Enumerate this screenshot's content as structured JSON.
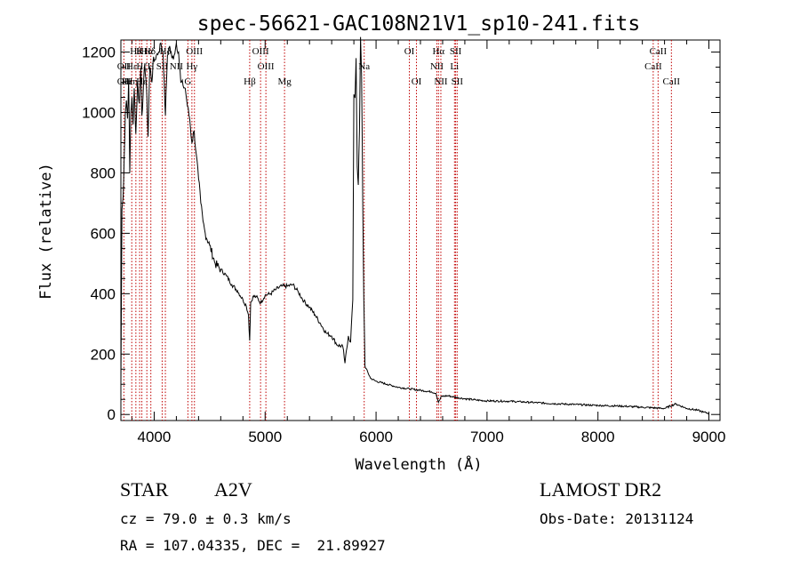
{
  "chart_data": {
    "type": "line",
    "title": "spec-56621-GAC108N21V1_sp10-241.fits",
    "xlabel": "Wavelength (Å)",
    "ylabel": "Flux (relative)",
    "xlim": [
      3700,
      9100
    ],
    "ylim": [
      -20,
      1240
    ],
    "xticks": [
      4000,
      5000,
      6000,
      7000,
      8000,
      9000
    ],
    "yticks": [
      0,
      200,
      400,
      600,
      800,
      1000,
      1200
    ],
    "grid": false,
    "series": [
      {
        "x": [
          3700,
          3710,
          3720,
          3730,
          3740,
          3750,
          3760,
          3770,
          3780,
          3790,
          3800,
          3810,
          3820,
          3835,
          3850,
          3865,
          3880,
          3889,
          3900,
          3915,
          3930,
          3945,
          3960,
          3970,
          3980,
          3990,
          4000,
          4020,
          4040,
          4060,
          4080,
          4101,
          4120,
          4140,
          4160,
          4180,
          4200,
          4220,
          4240,
          4260,
          4280,
          4300,
          4320,
          4340,
          4360,
          4380,
          4400,
          4420,
          4440,
          4460,
          4500,
          4550,
          4600,
          4650,
          4700,
          4750,
          4800,
          4830,
          4850,
          4861,
          4870,
          4890,
          4920,
          4960,
          5000,
          5050,
          5100,
          5150,
          5200,
          5250,
          5300,
          5350,
          5400,
          5450,
          5500,
          5550,
          5600,
          5650,
          5700,
          5720,
          5750,
          5770,
          5790,
          5800,
          5810,
          5820,
          5830,
          5840,
          5850,
          5860,
          5870,
          5880,
          5890,
          5900,
          5950,
          6000,
          6100,
          6200,
          6300,
          6400,
          6500,
          6540,
          6563,
          6590,
          6650,
          6700,
          6800,
          6900,
          7000,
          7200,
          7400,
          7600,
          7800,
          8000,
          8200,
          8400,
          8600,
          8700,
          8800,
          8900,
          8950,
          9000
        ],
        "values": [
          100,
          680,
          720,
          850,
          1000,
          1040,
          980,
          1110,
          800,
          1000,
          1050,
          960,
          1080,
          930,
          1100,
          1030,
          1150,
          990,
          1060,
          1160,
          1090,
          920,
          1150,
          1130,
          1100,
          1170,
          1170,
          1190,
          1200,
          1230,
          1200,
          990,
          1190,
          1220,
          1180,
          1190,
          1230,
          1200,
          1100,
          1090,
          1080,
          1020,
          980,
          900,
          940,
          860,
          780,
          700,
          640,
          600,
          560,
          500,
          480,
          460,
          430,
          410,
          380,
          360,
          330,
          245,
          370,
          390,
          390,
          370,
          395,
          400,
          415,
          425,
          425,
          430,
          405,
          375,
          355,
          330,
          300,
          270,
          260,
          230,
          225,
          170,
          260,
          240,
          380,
          1060,
          1050,
          1180,
          820,
          760,
          940,
          1250,
          1120,
          700,
          380,
          160,
          120,
          110,
          100,
          90,
          85,
          80,
          75,
          70,
          40,
          60,
          62,
          58,
          52,
          48,
          45,
          44,
          40,
          36,
          33,
          30,
          28,
          24,
          20,
          35,
          20,
          14,
          8,
          4
        ]
      }
    ],
    "lines": {
      "labels": [
        {
          "x": 3835,
          "row": 1,
          "text": "Hθ"
        },
        {
          "x": 3869,
          "row": 1,
          "text": "K"
        },
        {
          "x": 3934,
          "row": 1,
          "text": "Hα"
        },
        {
          "x": 3960,
          "row": 1,
          "text": "Hδ"
        },
        {
          "x": 4101,
          "row": 1,
          "text": "Hδ"
        },
        {
          "x": 4363,
          "row": 1,
          "text": "OIII"
        },
        {
          "x": 4959,
          "row": 1,
          "text": "OIII"
        },
        {
          "x": 6300,
          "row": 1,
          "text": "OI"
        },
        {
          "x": 6563,
          "row": 1,
          "text": "Hα"
        },
        {
          "x": 6717,
          "row": 1,
          "text": "SII"
        },
        {
          "x": 8542,
          "row": 1,
          "text": "CaII"
        },
        {
          "x": 3727,
          "row": 2,
          "text": "OII"
        },
        {
          "x": 3798,
          "row": 2,
          "text": "Hε"
        },
        {
          "x": 3889,
          "row": 2,
          "text": "Hζ"
        },
        {
          "x": 3970,
          "row": 2,
          "text": "H"
        },
        {
          "x": 4072,
          "row": 2,
          "text": "SII"
        },
        {
          "x": 4200,
          "row": 2,
          "text": "NII"
        },
        {
          "x": 4340,
          "row": 2,
          "text": "Hγ"
        },
        {
          "x": 5007,
          "row": 2,
          "text": "OIII"
        },
        {
          "x": 5893,
          "row": 2,
          "text": "Na"
        },
        {
          "x": 6548,
          "row": 2,
          "text": "NII"
        },
        {
          "x": 6707,
          "row": 2,
          "text": "Li"
        },
        {
          "x": 8498,
          "row": 2,
          "text": "CaII"
        },
        {
          "x": 3727,
          "row": 3,
          "text": "OII"
        },
        {
          "x": 3760,
          "row": 3,
          "text": "Hε"
        },
        {
          "x": 3798,
          "row": 3,
          "text": "Hη"
        },
        {
          "x": 3889,
          "row": 3,
          "text": "Hε"
        },
        {
          "x": 4304,
          "row": 3,
          "text": "G"
        },
        {
          "x": 4861,
          "row": 3,
          "text": "Hβ"
        },
        {
          "x": 5175,
          "row": 3,
          "text": "Mg"
        },
        {
          "x": 6364,
          "row": 3,
          "text": "OI"
        },
        {
          "x": 6584,
          "row": 3,
          "text": "NII"
        },
        {
          "x": 6731,
          "row": 3,
          "text": "SII"
        },
        {
          "x": 8662,
          "row": 3,
          "text": "CaII"
        }
      ],
      "positions": [
        3727,
        3798,
        3835,
        3869,
        3889,
        3934,
        3970,
        4072,
        4101,
        4304,
        4340,
        4363,
        4861,
        4959,
        5007,
        5175,
        5893,
        6300,
        6364,
        6548,
        6563,
        6584,
        6707,
        6717,
        6731,
        8498,
        8542,
        8662
      ]
    }
  },
  "info": {
    "object_class": "STAR",
    "subclass": "A2V",
    "survey": "LAMOST DR2",
    "redshift": "cz = 79.0 ± 0.3 km/s",
    "obs_date": "Obs-Date: 20131124",
    "coords": "RA = 107.04335, DEC =  21.89927"
  }
}
